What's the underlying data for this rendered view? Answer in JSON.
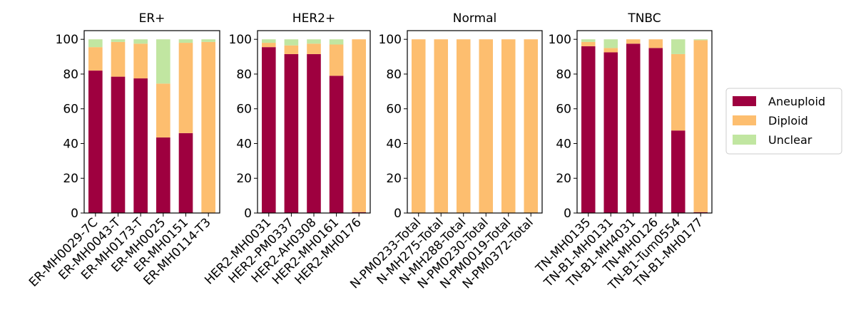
{
  "colors": {
    "Aneuploid": "#9e003f",
    "Diploid": "#fdbe6f",
    "Unclear": "#c1e6a1"
  },
  "legend": {
    "items": [
      "Aneuploid",
      "Diploid",
      "Unclear"
    ],
    "placement": "center-right"
  },
  "chart_data": [
    {
      "type": "bar",
      "stacked": true,
      "title": "ER+",
      "categories": [
        "ER-MH0029-7C",
        "ER-MH0043-T",
        "ER-MH0173-T",
        "ER-MH0025",
        "ER-MH0151",
        "ER-MH0114-T3"
      ],
      "series": [
        {
          "name": "Aneuploid",
          "values": [
            82,
            78.5,
            77.5,
            43.5,
            46,
            0
          ]
        },
        {
          "name": "Diploid",
          "values": [
            13.5,
            20,
            20,
            31,
            52,
            98.5
          ]
        },
        {
          "name": "Unclear",
          "values": [
            4.5,
            1.5,
            2.5,
            25.5,
            2,
            1.5
          ]
        }
      ],
      "ylim": [
        0,
        105
      ],
      "yticks": [
        0,
        20,
        40,
        60,
        80,
        100
      ]
    },
    {
      "type": "bar",
      "stacked": true,
      "title": "HER2+",
      "categories": [
        "HER2-MH0031",
        "HER2-PM0337",
        "HER2-AH0308",
        "HER2-MH0161",
        "HER2-MH0176"
      ],
      "series": [
        {
          "name": "Aneuploid",
          "values": [
            95.5,
            91.5,
            91.5,
            79,
            0.5
          ]
        },
        {
          "name": "Diploid",
          "values": [
            2.5,
            5,
            6,
            18,
            99.5
          ]
        },
        {
          "name": "Unclear",
          "values": [
            2,
            3.5,
            2.5,
            3,
            0
          ]
        }
      ],
      "ylim": [
        0,
        105
      ],
      "yticks": [
        0,
        20,
        40,
        60,
        80,
        100
      ]
    },
    {
      "type": "bar",
      "stacked": true,
      "title": "Normal",
      "categories": [
        "N-PM0233-Total",
        "N-MH275-Total",
        "N-MH288-Total",
        "N-PM0230-Total",
        "N-PM0019-Total",
        "N-PM0372-Total"
      ],
      "series": [
        {
          "name": "Aneuploid",
          "values": [
            0,
            0,
            0,
            0,
            0,
            0
          ]
        },
        {
          "name": "Diploid",
          "values": [
            100,
            100,
            100,
            100,
            100,
            100
          ]
        },
        {
          "name": "Unclear",
          "values": [
            0,
            0,
            0,
            0,
            0,
            0
          ]
        }
      ],
      "ylim": [
        0,
        105
      ],
      "yticks": [
        0,
        20,
        40,
        60,
        80,
        100
      ]
    },
    {
      "type": "bar",
      "stacked": true,
      "title": "TNBC",
      "categories": [
        "TN-MH0135",
        "TN-B1-MH0131",
        "TN-B1-MH4031",
        "TN-MH0126",
        "TN-B1-Tum0554",
        "TN-B1-MH0177"
      ],
      "series": [
        {
          "name": "Aneuploid",
          "values": [
            96,
            92.5,
            97.5,
            95,
            47.5,
            0.5
          ]
        },
        {
          "name": "Diploid",
          "values": [
            2.5,
            2.5,
            2.5,
            5,
            44,
            99
          ]
        },
        {
          "name": "Unclear",
          "values": [
            1.5,
            5,
            0,
            0,
            8.5,
            0.5
          ]
        }
      ],
      "ylim": [
        0,
        105
      ],
      "yticks": [
        0,
        20,
        40,
        60,
        80,
        100
      ]
    }
  ]
}
